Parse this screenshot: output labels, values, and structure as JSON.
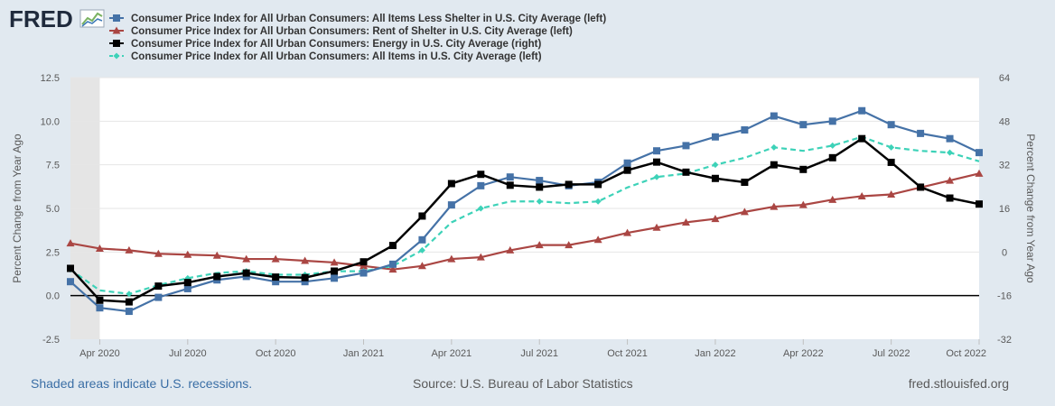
{
  "logo": {
    "text": "FRED"
  },
  "legend": [
    {
      "name": "Consumer Price Index for All Urban Consumers: All Items Less Shelter in U.S. City Average (left)",
      "marker": "square",
      "color": "#4572a7",
      "dash": "none"
    },
    {
      "name": "Consumer Price Index for All Urban Consumers: Rent of Shelter in U.S. City Average (left)",
      "marker": "triangle",
      "color": "#aa4643",
      "dash": "none"
    },
    {
      "name": "Consumer Price Index for All Urban Consumers: Energy in U.S. City Average (right)",
      "marker": "square",
      "color": "#000000",
      "dash": "none"
    },
    {
      "name": "Consumer Price Index for All Urban Consumers: All Items in U.S. City Average (left)",
      "marker": "diamond",
      "color": "#3dd2b8",
      "dash": "dash"
    }
  ],
  "footer": {
    "recession_note": "Shaded areas indicate U.S. recessions.",
    "source": "Source: U.S. Bureau of Labor Statistics",
    "site": "fred.stlouisfed.org"
  },
  "chart_data": {
    "type": "line",
    "x": [
      "2020-03",
      "2020-04",
      "2020-05",
      "2020-06",
      "2020-07",
      "2020-08",
      "2020-09",
      "2020-10",
      "2020-11",
      "2020-12",
      "2021-01",
      "2021-02",
      "2021-03",
      "2021-04",
      "2021-05",
      "2021-06",
      "2021-07",
      "2021-08",
      "2021-09",
      "2021-10",
      "2021-11",
      "2021-12",
      "2022-01",
      "2022-02",
      "2022-03",
      "2022-04",
      "2022-05",
      "2022-06",
      "2022-07",
      "2022-08",
      "2022-09",
      "2022-10"
    ],
    "x_tick_labels": [
      {
        "x": "2020-04",
        "label": "Apr 2020"
      },
      {
        "x": "2020-07",
        "label": "Jul 2020"
      },
      {
        "x": "2020-10",
        "label": "Oct 2020"
      },
      {
        "x": "2021-01",
        "label": "Jan 2021"
      },
      {
        "x": "2021-04",
        "label": "Apr 2021"
      },
      {
        "x": "2021-07",
        "label": "Jul 2021"
      },
      {
        "x": "2021-10",
        "label": "Oct 2021"
      },
      {
        "x": "2022-01",
        "label": "Jan 2022"
      },
      {
        "x": "2022-04",
        "label": "Apr 2022"
      },
      {
        "x": "2022-07",
        "label": "Jul 2022"
      },
      {
        "x": "2022-10",
        "label": "Oct 2022"
      }
    ],
    "recession": {
      "start": "2020-03",
      "end": "2020-04"
    },
    "y_left": {
      "label": "Percent Change from Year Ago",
      "min": -2.5,
      "max": 12.5,
      "ticks": [
        -2.5,
        0.0,
        2.5,
        5.0,
        7.5,
        10.0,
        12.5
      ],
      "tick_labels": [
        "-2.5",
        "0.0",
        "2.5",
        "5.0",
        "7.5",
        "10.0",
        "12.5"
      ]
    },
    "y_right": {
      "label": "Percent Change from Year Ago",
      "min": -32,
      "max": 64,
      "ticks": [
        -32,
        -16,
        0,
        16,
        32,
        48,
        64
      ],
      "tick_labels": [
        "-32",
        "-16",
        "0",
        "16",
        "32",
        "48",
        "64"
      ]
    },
    "zero_line": true,
    "series": [
      {
        "name": "Consumer Price Index for All Urban Consumers: All Items Less Shelter in U.S. City Average (left)",
        "axis": "left",
        "marker": "square",
        "color": "#4572a7",
        "dash": "none",
        "values": [
          0.8,
          -0.7,
          -0.9,
          -0.1,
          0.4,
          0.9,
          1.1,
          0.8,
          0.8,
          1.0,
          1.3,
          1.8,
          3.2,
          5.2,
          6.3,
          6.8,
          6.6,
          6.3,
          6.5,
          7.6,
          8.3,
          8.6,
          9.1,
          9.5,
          10.3,
          9.8,
          10.0,
          10.6,
          9.8,
          9.3,
          9.0,
          8.2
        ]
      },
      {
        "name": "Consumer Price Index for All Urban Consumers: Rent of Shelter in U.S. City Average (left)",
        "axis": "left",
        "marker": "triangle",
        "color": "#aa4643",
        "dash": "none",
        "values": [
          3.0,
          2.7,
          2.6,
          2.4,
          2.35,
          2.3,
          2.1,
          2.1,
          2.0,
          1.9,
          1.7,
          1.5,
          1.7,
          2.1,
          2.2,
          2.6,
          2.9,
          2.9,
          3.2,
          3.6,
          3.9,
          4.2,
          4.4,
          4.8,
          5.1,
          5.2,
          5.5,
          5.7,
          5.8,
          6.2,
          6.6,
          7.0
        ]
      },
      {
        "name": "Consumer Price Index for All Urban Consumers: Energy in U.S. City Average (right)",
        "axis": "right",
        "marker": "square",
        "color": "#000000",
        "dash": "none",
        "values": [
          -6.0,
          -17.7,
          -18.3,
          -12.5,
          -11.2,
          -9.0,
          -7.7,
          -9.2,
          -9.4,
          -7.0,
          -3.6,
          2.4,
          13.2,
          25.1,
          28.5,
          24.5,
          23.8,
          24.8,
          24.8,
          30.0,
          33.0,
          29.3,
          27.0,
          25.6,
          32.0,
          30.3,
          34.6,
          41.6,
          32.9,
          23.8,
          19.8,
          17.6
        ]
      },
      {
        "name": "Consumer Price Index for All Urban Consumers: All Items in U.S. City Average (left)",
        "axis": "left",
        "marker": "diamond",
        "color": "#3dd2b8",
        "dash": "dash",
        "values": [
          1.5,
          0.3,
          0.1,
          0.6,
          1.0,
          1.3,
          1.4,
          1.2,
          1.2,
          1.4,
          1.4,
          1.7,
          2.6,
          4.2,
          5.0,
          5.4,
          5.4,
          5.3,
          5.4,
          6.2,
          6.8,
          7.0,
          7.5,
          7.9,
          8.5,
          8.3,
          8.6,
          9.1,
          8.5,
          8.3,
          8.2,
          7.7
        ]
      }
    ]
  }
}
